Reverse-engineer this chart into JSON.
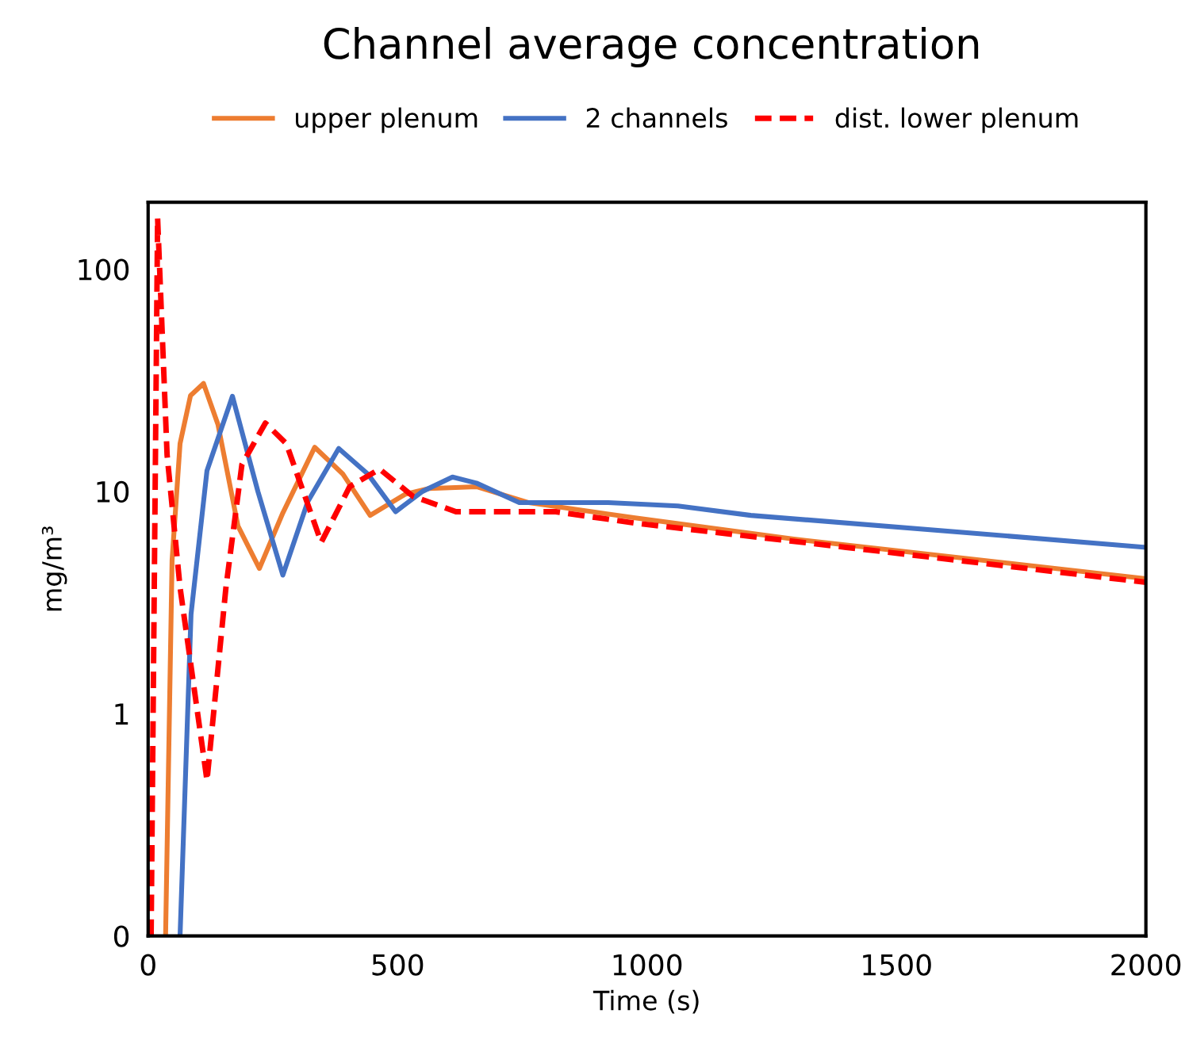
{
  "chart_data": {
    "type": "line",
    "title": "Channel average concentration",
    "xlabel": "Time (s)",
    "ylabel": "mg/m³",
    "xlim": [
      0,
      2000
    ],
    "xticks": [
      0,
      500,
      1000,
      1500,
      2000
    ],
    "ylim": [
      0.1,
      200
    ],
    "yticks": [
      {
        "value": 0.1,
        "label": "0"
      },
      1,
      10,
      100
    ],
    "log": "y",
    "grid": false,
    "legend": "top",
    "marker": "none",
    "series": [
      {
        "name": "upper plenum",
        "color": "#ed7d31",
        "line_style": "solid",
        "x": [
          35,
          48,
          64,
          85,
          111,
          140,
          180,
          223,
          270,
          334,
          390,
          445,
          515,
          563,
          658,
          763,
          976,
          1294,
          2000
        ],
        "values": [
          0.1,
          4.9,
          16.4,
          27,
          30.6,
          20,
          7,
          4.5,
          8,
          15.8,
          12,
          7.8,
          9.7,
          10.3,
          10.5,
          8.9,
          7.6,
          6.1,
          4.05
        ]
      },
      {
        "name": "2 channels",
        "color": "#4472c4",
        "line_style": "solid",
        "x": [
          64,
          86,
          118,
          169,
          220,
          270,
          320,
          382,
          440,
          496,
          550,
          610,
          658,
          744,
          922,
          1062,
          1208,
          1612,
          2000
        ],
        "values": [
          0.1,
          2.8,
          12.4,
          26.8,
          10,
          4.2,
          9,
          15.6,
          12,
          8.1,
          10,
          11.6,
          10.9,
          8.9,
          8.9,
          8.6,
          7.8,
          6.6,
          5.6
        ]
      },
      {
        "name": "dist. lower plenum",
        "color": "#ff0000",
        "line_style": "dashed",
        "x": [
          6,
          19,
          38,
          64,
          118,
          156,
          188,
          235,
          277,
          347,
          404,
          464,
          531,
          617,
          763,
          817,
          976,
          1399,
          2000
        ],
        "values": [
          0.1,
          170,
          14.6,
          3.7,
          0.5,
          3.7,
          13.2,
          20.3,
          16.4,
          5.9,
          10.5,
          12.6,
          9.5,
          8.1,
          8.1,
          8.1,
          7.2,
          5.6,
          3.9
        ]
      }
    ]
  }
}
